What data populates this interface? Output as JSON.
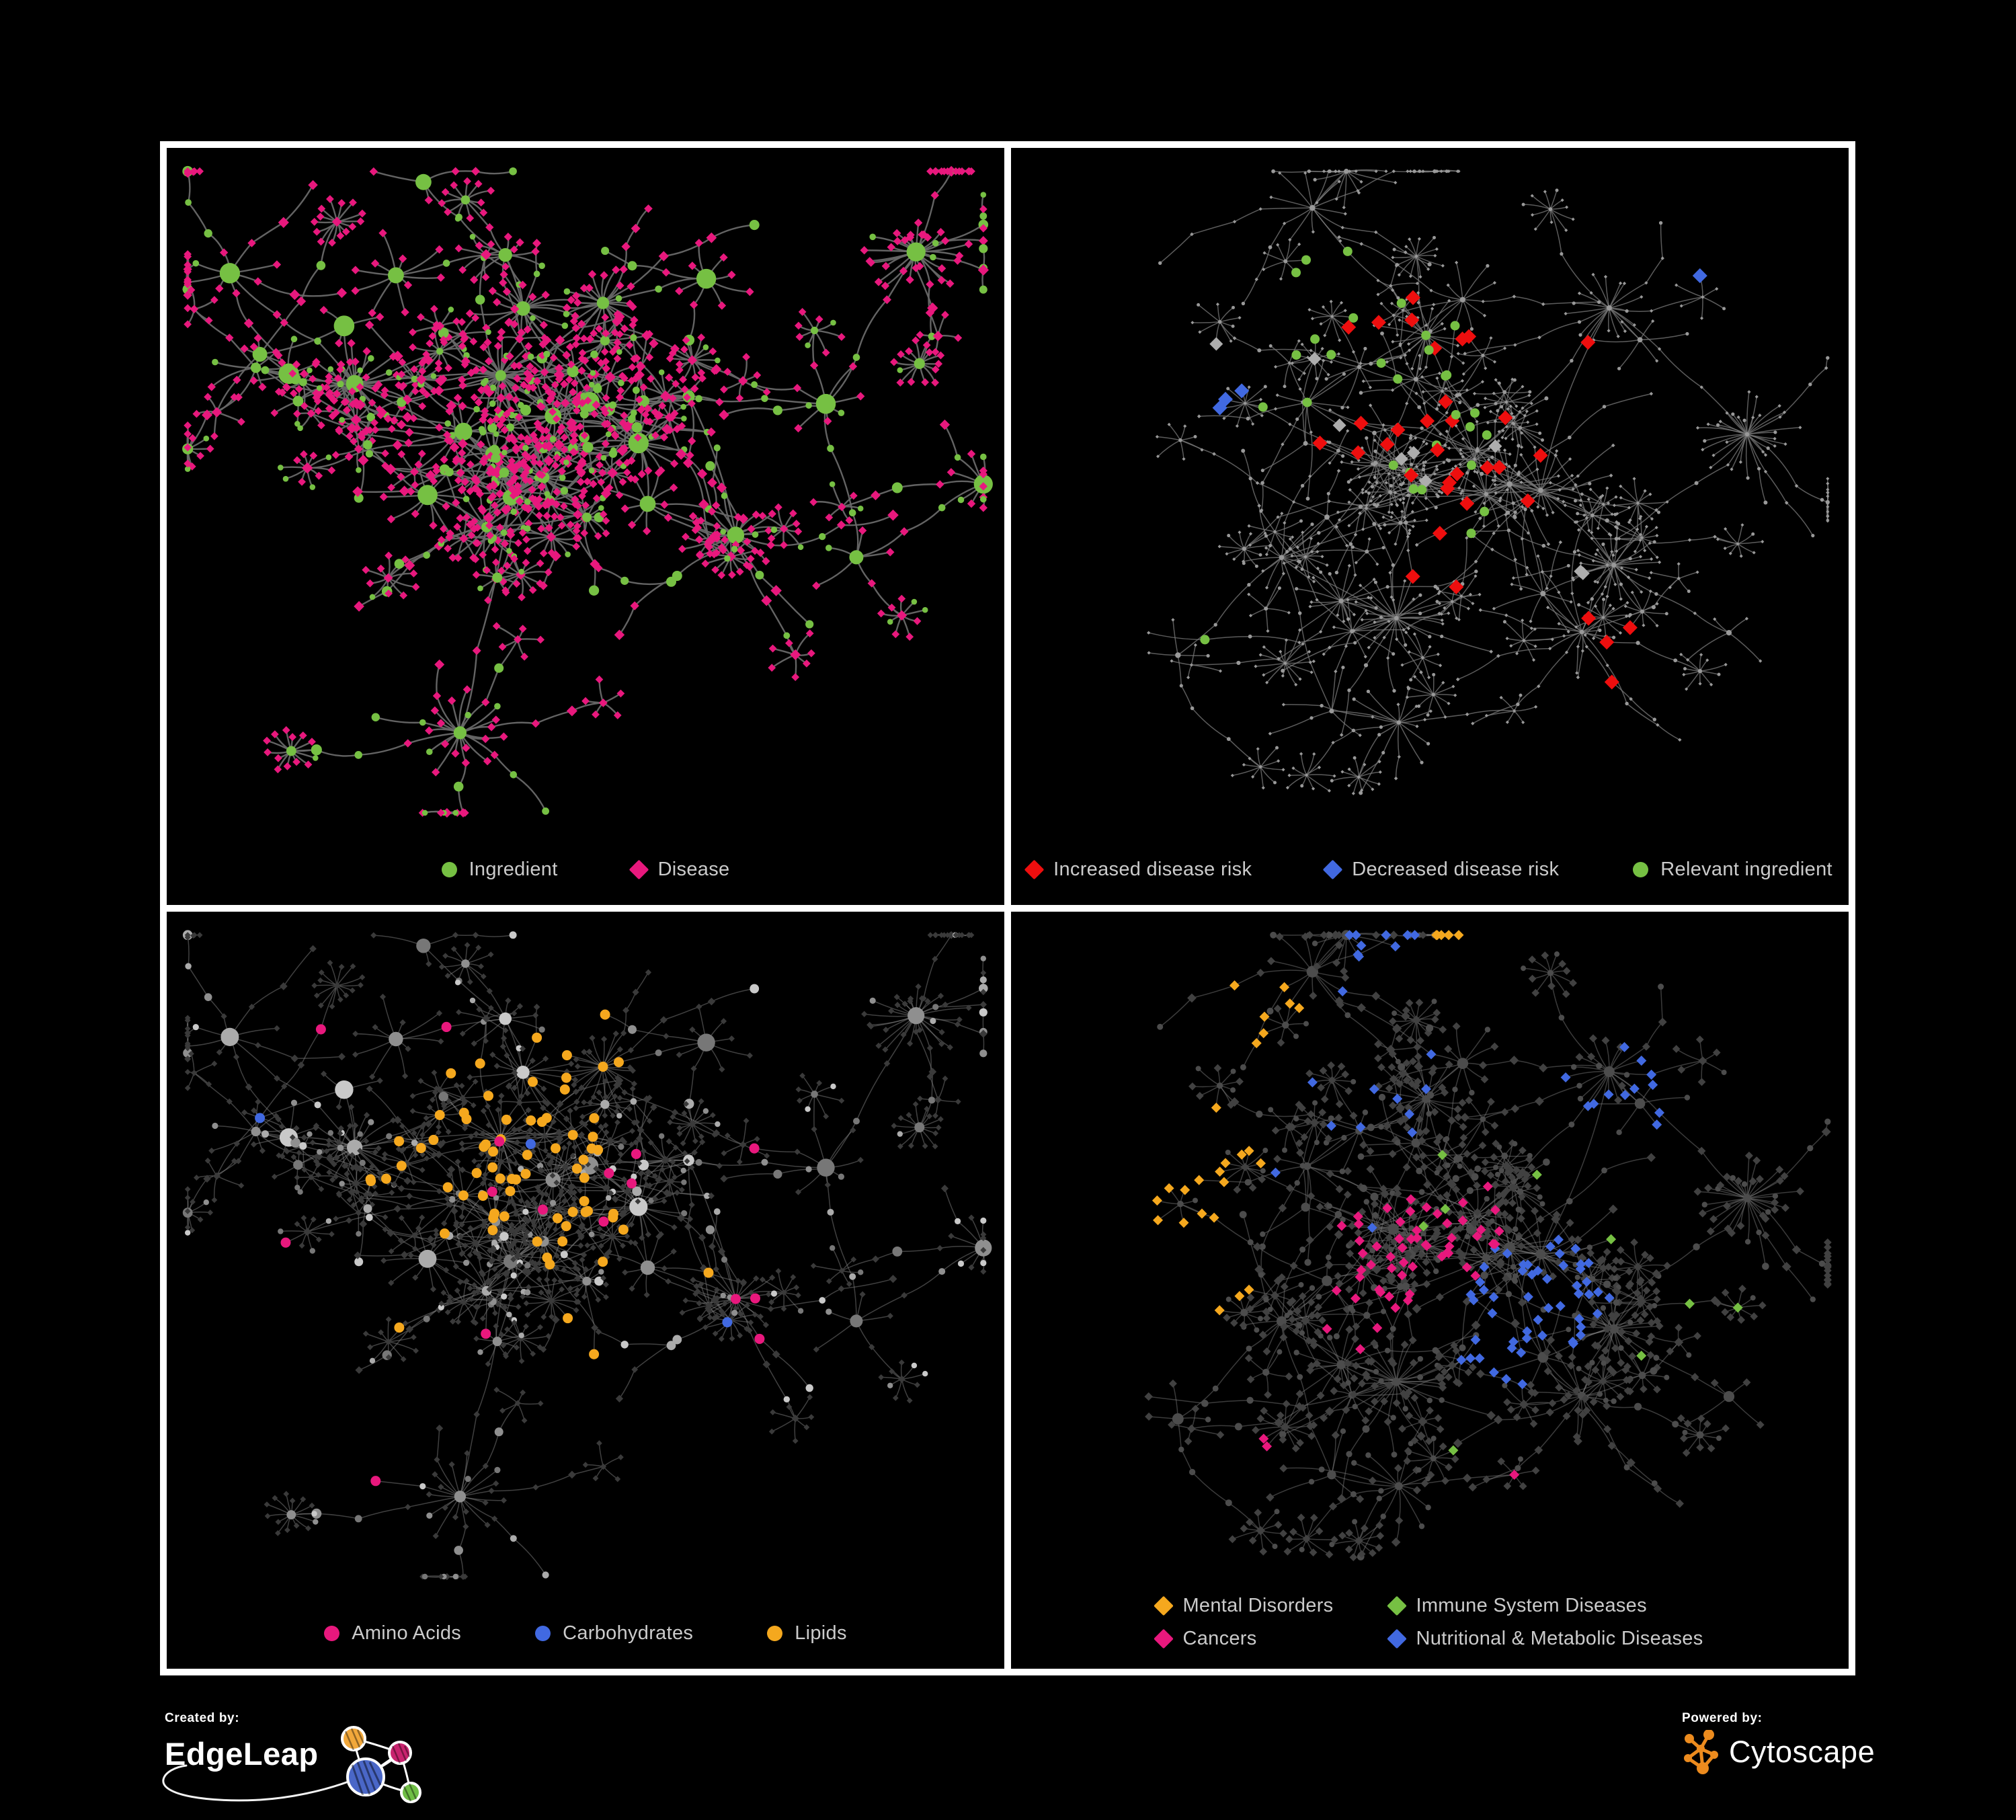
{
  "page": {
    "background": "#000000",
    "panel_border_color": "#FFFFFF"
  },
  "colors": {
    "green": "#76C043",
    "magenta": "#E8187D",
    "red": "#EE0E0E",
    "royal_blue": "#4169E1",
    "amber": "#F5A81E",
    "light_gray": "#ADADAD",
    "legend_text": "#CBCBCB"
  },
  "panels": [
    {
      "id": "ingredient-disease",
      "legend_columns": 1,
      "legend": [
        {
          "label": "Ingredient",
          "shape": "circle",
          "color": "#76C043"
        },
        {
          "label": "Disease",
          "shape": "diamond",
          "color": "#E8187D"
        }
      ],
      "graph": {
        "seed": 7,
        "hubScale": 1.0,
        "edge": {
          "color": "#686868",
          "width": 2.4,
          "opacity": 0.95,
          "curve": 0.5
        },
        "style": {
          "circle": {
            "fill": "#76C043",
            "r": 4.8
          },
          "diamond": {
            "fill": "#E8187D",
            "s": 6.2
          }
        },
        "highlights": []
      }
    },
    {
      "id": "disease-risk",
      "legend_columns": 1,
      "legend": [
        {
          "label": "Increased disease risk",
          "shape": "diamond",
          "color": "#EE0E0E"
        },
        {
          "label": "Decreased disease risk",
          "shape": "diamond",
          "color": "#4169E1"
        },
        {
          "label": "Relevant ingredient",
          "shape": "circle",
          "color": "#76C043"
        }
      ],
      "graph": {
        "seed": 13,
        "hubScale": 0.3,
        "edge": {
          "color": "#7A7A7A",
          "width": 1.5,
          "opacity": 0.75,
          "curve": 0.3
        },
        "style": {
          "circle": {
            "fill": "#999999",
            "r": 2.6
          },
          "diamond": {
            "fill": "#999999",
            "s": 2.6
          }
        },
        "highlights": [
          {
            "shape": "diamond",
            "fill": "#EE0E0E",
            "size": 11,
            "max": 34,
            "prob": 0.8,
            "foci": [
              [
                0.47,
                0.28,
                0.12
              ],
              [
                0.38,
                0.4,
                0.09
              ],
              [
                0.55,
                0.45,
                0.09
              ],
              [
                0.63,
                0.27,
                0.07
              ],
              [
                0.73,
                0.72,
                0.065
              ],
              [
                0.52,
                0.6,
                0.05
              ],
              [
                0.88,
                0.78,
                0.04
              ]
            ]
          },
          {
            "shape": "diamond",
            "fill": "#4169E1",
            "size": 11,
            "max": 9,
            "prob": 0.7,
            "foci": [
              [
                0.22,
                0.33,
                0.065
              ],
              [
                0.86,
                0.17,
                0.05
              ],
              [
                0.23,
                0.44,
                0.045
              ]
            ]
          },
          {
            "shape": "diamond",
            "fill": "#ADADAD",
            "size": 10,
            "max": 9,
            "prob": 0.5,
            "foci": [
              [
                0.31,
                0.3,
                0.07
              ],
              [
                0.52,
                0.48,
                0.08
              ],
              [
                0.44,
                0.4,
                0.05
              ],
              [
                0.67,
                0.58,
                0.05
              ]
            ]
          },
          {
            "shape": "circle",
            "fill": "#76C043",
            "size": 7,
            "max": 30,
            "prob": 0.7,
            "foci": [
              [
                0.44,
                0.33,
                0.13
              ],
              [
                0.29,
                0.3,
                0.1
              ],
              [
                0.54,
                0.47,
                0.1
              ],
              [
                0.23,
                0.72,
                0.05
              ],
              [
                0.17,
                0.3,
                0.06
              ],
              [
                0.62,
                0.6,
                0.06
              ],
              [
                0.38,
                0.22,
                0.08
              ]
            ]
          }
        ]
      }
    },
    {
      "id": "nutrient-categories",
      "legend_columns": 1,
      "legend": [
        {
          "label": "Amino Acids",
          "shape": "circle",
          "color": "#E8187D"
        },
        {
          "label": "Carbohydrates",
          "shape": "circle",
          "color": "#4169E1"
        },
        {
          "label": "Lipids",
          "shape": "circle",
          "color": "#F5A81E"
        }
      ],
      "graph": {
        "seed": 7,
        "hubScale": 0.9,
        "edge": {
          "color": "#808080",
          "width": 1.5,
          "opacity": 0.5,
          "curve": 0.3
        },
        "style": {
          "circle": {
            "fill": "#9A9A9A",
            "r": 4.6,
            "vary": true
          },
          "diamond": {
            "fill": "#3A3A3A",
            "s": 4.6
          }
        },
        "highlights": [
          {
            "shape": "circle",
            "fill": "#F5A81E",
            "size": 7.5,
            "max": 72,
            "prob": 0.8,
            "foci": [
              [
                0.4,
                0.26,
                0.1
              ],
              [
                0.45,
                0.33,
                0.085
              ],
              [
                0.33,
                0.4,
                0.09
              ],
              [
                0.5,
                0.47,
                0.06
              ],
              [
                0.52,
                0.6,
                0.065
              ],
              [
                0.28,
                0.2,
                0.06
              ],
              [
                0.61,
                0.52,
                0.05
              ],
              [
                0.24,
                0.62,
                0.045
              ],
              [
                0.52,
                0.18,
                0.05
              ]
            ]
          },
          {
            "shape": "circle",
            "fill": "#4169E1",
            "size": 7.5,
            "max": 12,
            "prob": 0.5,
            "foci": [
              [
                0.42,
                0.31,
                0.055
              ],
              [
                0.36,
                0.24,
                0.045
              ],
              [
                0.66,
                0.6,
                0.035
              ],
              [
                0.1,
                0.3,
                0.03
              ]
            ]
          },
          {
            "shape": "circle",
            "fill": "#E8187D",
            "size": 7.5,
            "max": 16,
            "prob": 0.3,
            "foci": [
              [
                0.48,
                0.45,
                0.46
              ]
            ]
          }
        ]
      }
    },
    {
      "id": "disease-categories",
      "legend_columns": 2,
      "legend": [
        {
          "label": "Mental Disorders",
          "shape": "diamond",
          "color": "#F5A81E"
        },
        {
          "label": "Immune System Diseases",
          "shape": "diamond",
          "color": "#76C043"
        },
        {
          "label": "Cancers",
          "shape": "diamond",
          "color": "#E8187D"
        },
        {
          "label": "Nutritional & Metabolic Diseases",
          "shape": "diamond",
          "color": "#4169E1"
        }
      ],
      "graph": {
        "seed": 13,
        "hubScale": 0.5,
        "edge": {
          "color": "#828282",
          "width": 1.5,
          "opacity": 0.45,
          "curve": 0.3
        },
        "style": {
          "circle": {
            "fill": "#4C4C4C",
            "r": 4.2
          },
          "diamond": {
            "fill": "#414141",
            "s": 6.0
          }
        },
        "highlights": [
          {
            "shape": "diamond",
            "fill": "#F5A81E",
            "size": 7.5,
            "max": 95,
            "prob": 0.85,
            "foci": [
              [
                0.16,
                0.44,
                0.12
              ],
              [
                0.11,
                0.36,
                0.08
              ],
              [
                0.22,
                0.52,
                0.07
              ],
              [
                0.3,
                0.14,
                0.05
              ],
              [
                0.52,
                0.06,
                0.045
              ],
              [
                0.25,
                0.34,
                0.06
              ]
            ]
          },
          {
            "shape": "diamond",
            "fill": "#E8187D",
            "size": 7.5,
            "max": 58,
            "prob": 0.8,
            "foci": [
              [
                0.46,
                0.52,
                0.1
              ],
              [
                0.52,
                0.44,
                0.07
              ],
              [
                0.43,
                0.61,
                0.06
              ],
              [
                0.88,
                0.24,
                0.05
              ],
              [
                0.34,
                0.77,
                0.04
              ],
              [
                0.6,
                0.8,
                0.03
              ]
            ]
          },
          {
            "shape": "diamond",
            "fill": "#4169E1",
            "size": 7.5,
            "max": 85,
            "prob": 0.7,
            "foci": [
              [
                0.63,
                0.55,
                0.085
              ],
              [
                0.77,
                0.32,
                0.09
              ],
              [
                0.87,
                0.13,
                0.05
              ],
              [
                0.7,
                0.24,
                0.06
              ],
              [
                0.58,
                0.65,
                0.05
              ],
              [
                0.66,
                0.86,
                0.045
              ],
              [
                0.3,
                0.28,
                0.22,
                0.1
              ],
              [
                0.15,
                0.09,
                0.06
              ],
              [
                0.45,
                0.04,
                0.05
              ],
              [
                0.93,
                0.55,
                0.04
              ]
            ]
          },
          {
            "shape": "diamond",
            "fill": "#76C043",
            "size": 7.5,
            "max": 9,
            "prob": 0.2,
            "foci": [
              [
                0.5,
                0.45,
                0.45
              ]
            ]
          }
        ]
      }
    }
  ],
  "footer": {
    "created_by": "Created by:",
    "edgeleap": "EdgeLeap",
    "powered_by": "Powered by:",
    "cytoscape": "Cytoscape",
    "edgeleap_icon": "hand-drawn-network-doodle",
    "cytoscape_icon": "orange-network-glyph",
    "edgeleap_node_colors": {
      "orange": "#F2A83B",
      "pink": "#C9236F",
      "blue": "#4A67C7",
      "green": "#6FBE44"
    },
    "cytoscape_color": "#EC8B1E"
  }
}
